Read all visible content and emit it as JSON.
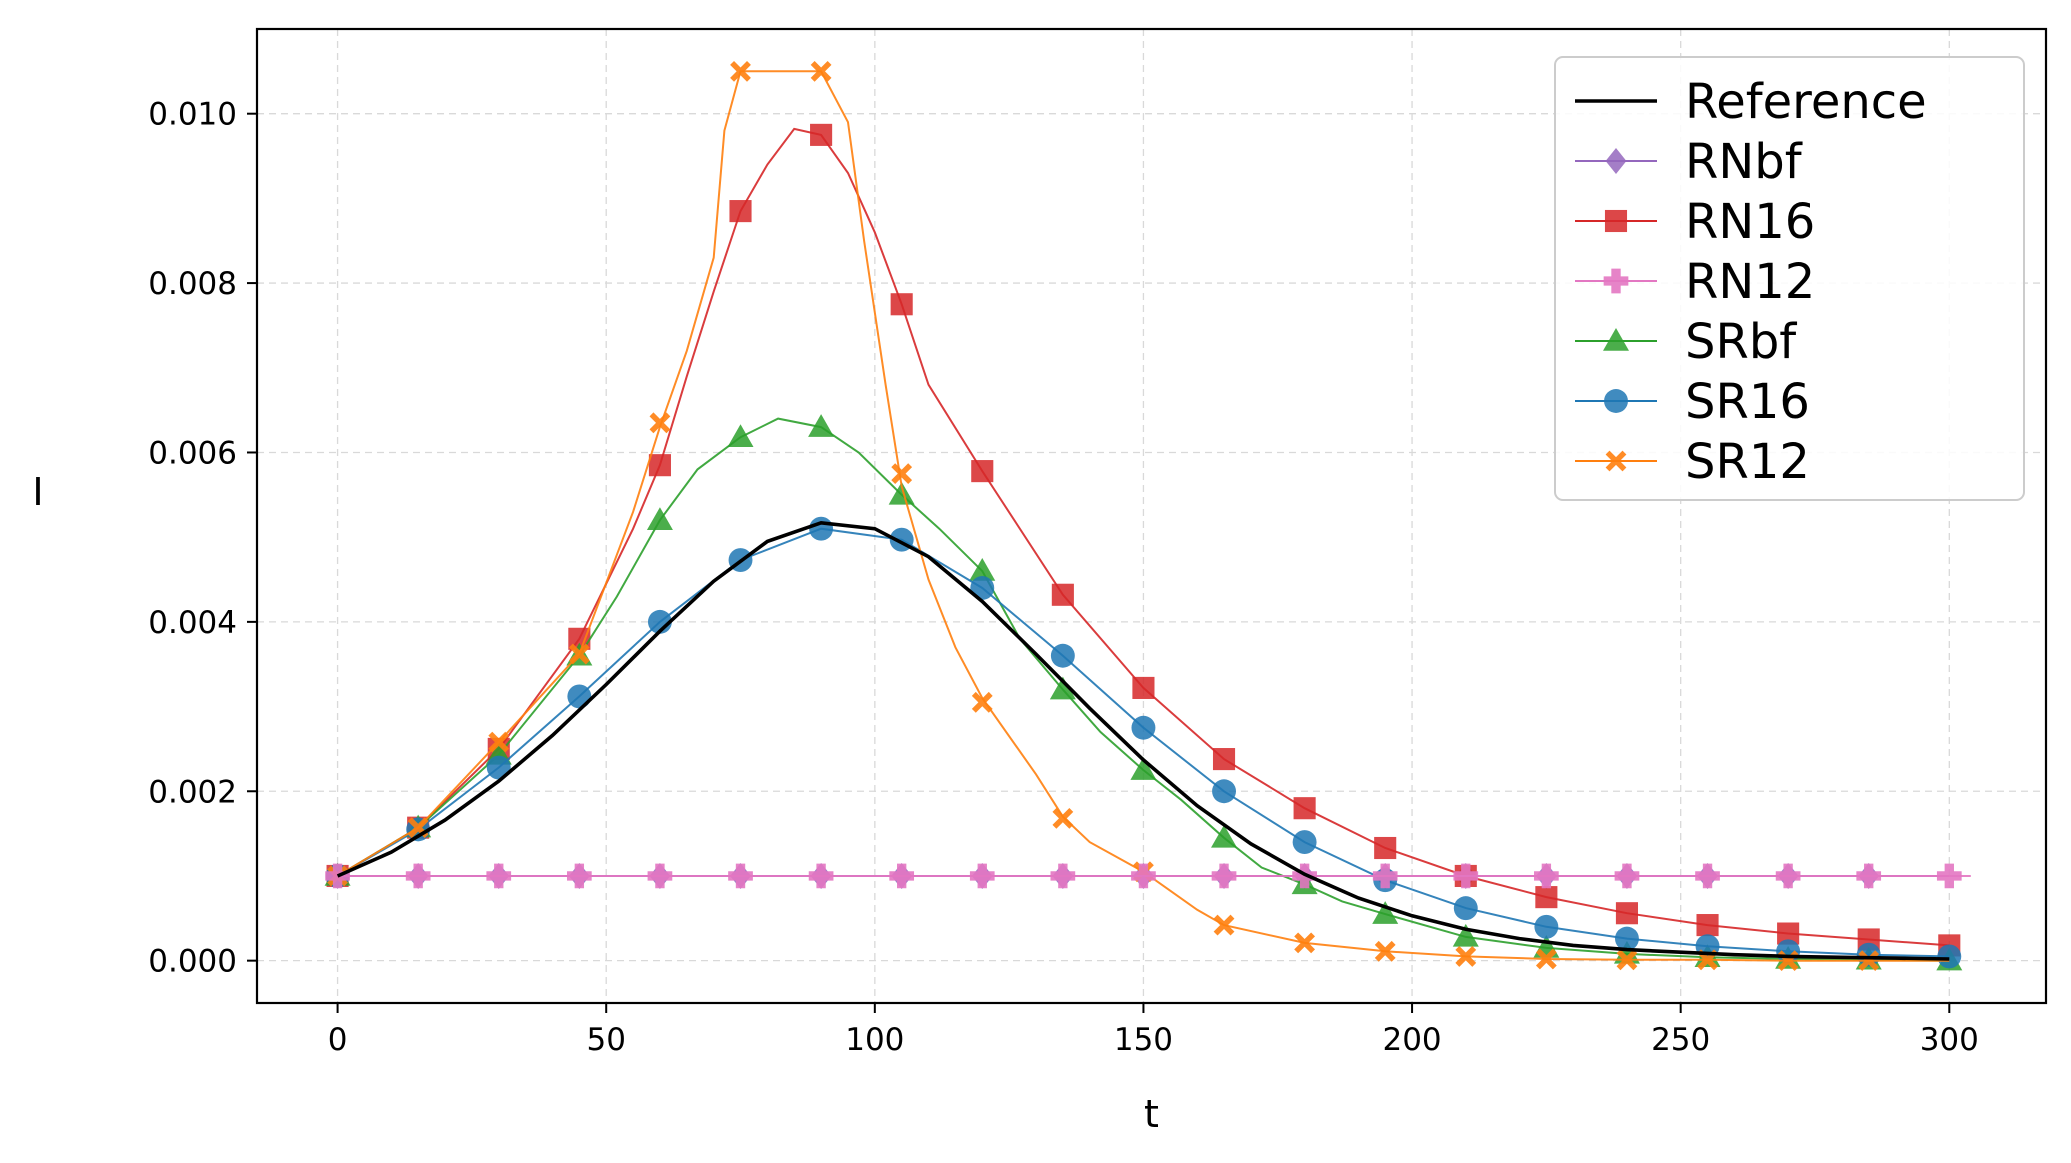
{
  "chart_data": {
    "type": "line",
    "xlabel": "t",
    "ylabel": "I",
    "xlim": [
      -15,
      318
    ],
    "ylim": [
      -0.0005,
      0.011
    ],
    "xticks": [
      0,
      50,
      100,
      150,
      200,
      250,
      300
    ],
    "xtick_labels": [
      "0",
      "50",
      "100",
      "150",
      "200",
      "250",
      "300"
    ],
    "yticks": [
      0.0,
      0.002,
      0.004,
      0.006,
      0.008,
      0.01
    ],
    "ytick_labels": [
      "0.000",
      "0.002",
      "0.004",
      "0.006",
      "0.008",
      "0.010"
    ],
    "grid": true,
    "legend_position": "top-right",
    "series": [
      {
        "name": "Reference",
        "color": "#000000",
        "marker": "none",
        "x": [
          0,
          10,
          20,
          30,
          40,
          50,
          60,
          70,
          80,
          90,
          100,
          110,
          120,
          130,
          140,
          150,
          160,
          170,
          180,
          190,
          200,
          210,
          220,
          230,
          240,
          250,
          260,
          270,
          280,
          290,
          300
        ],
        "y": [
          0.001,
          0.00128,
          0.00166,
          0.00212,
          0.00266,
          0.00326,
          0.00389,
          0.00448,
          0.00495,
          0.00517,
          0.0051,
          0.00477,
          0.00424,
          0.00362,
          0.00298,
          0.00237,
          0.00183,
          0.00138,
          0.00102,
          0.00074,
          0.00053,
          0.00037,
          0.00026,
          0.00018,
          0.00013,
          0.0001,
          7e-05,
          5e-05,
          4e-05,
          3e-05,
          2e-05
        ]
      },
      {
        "name": "RNbf",
        "color": "#9467bd",
        "marker": "diamond",
        "x": [
          0,
          15,
          30,
          45,
          60,
          75,
          90,
          105,
          120,
          135,
          150,
          165,
          180,
          195,
          210,
          225,
          240,
          255,
          270,
          285,
          300
        ],
        "y": [
          0.001,
          0.001,
          0.001,
          0.001,
          0.001,
          0.001,
          0.001,
          0.001,
          0.001,
          0.001,
          0.001,
          0.001,
          0.001,
          0.001,
          0.001,
          0.001,
          0.001,
          0.001,
          0.001,
          0.001,
          0.001
        ],
        "marker_x": [
          0,
          15,
          30,
          45,
          60,
          75,
          90,
          105,
          120,
          135,
          150,
          165,
          180,
          195,
          210,
          225,
          240,
          255,
          270,
          285
        ],
        "marker_y": [
          0.001,
          0.001,
          0.001,
          0.001,
          0.001,
          0.001,
          0.001,
          0.001,
          0.001,
          0.001,
          0.001,
          0.001,
          0.001,
          0.001,
          0.001,
          0.001,
          0.001,
          0.001,
          0.001,
          0.001
        ]
      },
      {
        "name": "RN16",
        "color": "#d62728",
        "marker": "square",
        "x": [
          0,
          15,
          30,
          45,
          55,
          60,
          65,
          70,
          75,
          80,
          85,
          90,
          95,
          100,
          105,
          110,
          120,
          135,
          150,
          165,
          180,
          195,
          210,
          225,
          240,
          255,
          270,
          285,
          300
        ],
        "y": [
          0.001,
          0.00157,
          0.0025,
          0.0038,
          0.0051,
          0.00585,
          0.0069,
          0.0079,
          0.00885,
          0.0094,
          0.00982,
          0.00975,
          0.0093,
          0.0086,
          0.00775,
          0.0068,
          0.00578,
          0.00432,
          0.00322,
          0.00238,
          0.0018,
          0.00133,
          0.001,
          0.00075,
          0.00056,
          0.00042,
          0.00032,
          0.00025,
          0.00018
        ],
        "marker_x": [
          0,
          15,
          30,
          45,
          60,
          75,
          90,
          105,
          120,
          135,
          150,
          165,
          180,
          195,
          210,
          225,
          240,
          255,
          270,
          285,
          300
        ],
        "marker_y": [
          0.001,
          0.00157,
          0.0025,
          0.0038,
          0.00585,
          0.00885,
          0.00975,
          0.00775,
          0.00578,
          0.00432,
          0.00322,
          0.00238,
          0.0018,
          0.00133,
          0.001,
          0.00075,
          0.00056,
          0.00042,
          0.00032,
          0.00025,
          0.00018
        ]
      },
      {
        "name": "RN12",
        "color": "#e377c2",
        "marker": "plus",
        "x": [
          0,
          304
        ],
        "y": [
          0.001,
          0.001
        ],
        "marker_x": [
          0,
          15,
          30,
          45,
          60,
          75,
          90,
          105,
          120,
          135,
          150,
          165,
          180,
          195,
          210,
          225,
          240,
          255,
          270,
          285,
          300
        ],
        "marker_y": [
          0.001,
          0.001,
          0.001,
          0.001,
          0.001,
          0.001,
          0.001,
          0.001,
          0.001,
          0.001,
          0.001,
          0.001,
          0.001,
          0.001,
          0.001,
          0.001,
          0.001,
          0.001,
          0.001,
          0.001,
          0.001
        ]
      },
      {
        "name": "SRbf",
        "color": "#2ca02c",
        "marker": "triangle",
        "x": [
          0,
          15,
          30,
          45,
          52,
          60,
          67,
          75,
          82,
          90,
          97,
          105,
          112,
          120,
          127,
          135,
          142,
          150,
          157,
          165,
          172,
          180,
          187,
          195,
          210,
          225,
          240,
          255,
          270,
          285,
          300
        ],
        "y": [
          0.001,
          0.00157,
          0.00243,
          0.0036,
          0.0043,
          0.0052,
          0.0058,
          0.00618,
          0.0064,
          0.0063,
          0.006,
          0.0055,
          0.0051,
          0.0046,
          0.0038,
          0.0032,
          0.0027,
          0.00225,
          0.0019,
          0.00145,
          0.0011,
          0.0009,
          0.0007,
          0.00055,
          0.00028,
          0.00015,
          8e-05,
          4e-05,
          2e-05,
          1e-05,
          0.0
        ],
        "marker_x": [
          0,
          15,
          30,
          45,
          60,
          75,
          90,
          105,
          120,
          135,
          150,
          165,
          180,
          195,
          210,
          225,
          240,
          255,
          270,
          285,
          300
        ],
        "marker_y": [
          0.001,
          0.00157,
          0.00243,
          0.0036,
          0.0052,
          0.00618,
          0.0063,
          0.0055,
          0.0046,
          0.0032,
          0.00225,
          0.00145,
          0.0009,
          0.00055,
          0.00028,
          0.00015,
          8e-05,
          4e-05,
          2e-05,
          1e-05,
          0.0
        ]
      },
      {
        "name": "SR16",
        "color": "#1f77b4",
        "marker": "circle",
        "x": [
          0,
          15,
          30,
          45,
          60,
          75,
          90,
          105,
          120,
          135,
          150,
          165,
          180,
          195,
          210,
          225,
          240,
          255,
          270,
          285,
          300
        ],
        "y": [
          0.001,
          0.00155,
          0.00228,
          0.00312,
          0.004,
          0.00473,
          0.0051,
          0.00497,
          0.0044,
          0.0036,
          0.00275,
          0.002,
          0.0014,
          0.00095,
          0.00062,
          0.0004,
          0.00026,
          0.00017,
          0.00011,
          7e-05,
          5e-05
        ]
      },
      {
        "name": "SR12",
        "color": "#ff7f0e",
        "marker": "x",
        "x": [
          0,
          15,
          30,
          45,
          55,
          60,
          65,
          70,
          72,
          75,
          90,
          95,
          98,
          102,
          105,
          110,
          115,
          120,
          130,
          135,
          140,
          150,
          160,
          165,
          180,
          195,
          210,
          225,
          240,
          255,
          270,
          285,
          300
        ],
        "y": [
          0.001,
          0.00157,
          0.00258,
          0.00362,
          0.0053,
          0.0063,
          0.0072,
          0.0083,
          0.0098,
          0.0105,
          0.0105,
          0.0099,
          0.0085,
          0.0068,
          0.0056,
          0.0045,
          0.0037,
          0.0031,
          0.0022,
          0.0017,
          0.0014,
          0.00105,
          0.0006,
          0.00042,
          0.00021,
          0.00011,
          5e-05,
          2e-05,
          1e-05,
          1e-05,
          0.0,
          0.0,
          0.0
        ],
        "marker_x": [
          0,
          15,
          30,
          45,
          60,
          75,
          90,
          105,
          120,
          135,
          150,
          165,
          180,
          195,
          210,
          225,
          240,
          255,
          270,
          285
        ],
        "marker_y": [
          0.001,
          0.00157,
          0.00258,
          0.00362,
          0.00635,
          0.0105,
          0.0105,
          0.00575,
          0.00305,
          0.00168,
          0.00105,
          0.00042,
          0.00021,
          0.00011,
          5e-05,
          2e-05,
          1e-05,
          1e-05,
          0.0,
          0.0
        ]
      }
    ]
  }
}
